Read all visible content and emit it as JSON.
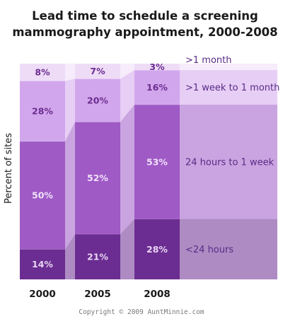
{
  "chart_data": {
    "type": "bar",
    "stacked": true,
    "title_lines": [
      "Lead time to schedule a screening",
      "mammography appointment, 2000-2008"
    ],
    "ylabel": "Percent of sites",
    "xlabel": "",
    "ylim": [
      0,
      100
    ],
    "categories": [
      "2000",
      "2005",
      "2008"
    ],
    "series": [
      {
        "name": "<24 hours",
        "values": [
          14,
          21,
          28
        ],
        "color": "#6b2d91"
      },
      {
        "name": "24 hours to 1 week",
        "values": [
          50,
          52,
          53
        ],
        "color": "#9f5ac6"
      },
      {
        "name": ">1 week to 1 month",
        "values": [
          28,
          20,
          16
        ],
        "color": "#d2a6ec"
      },
      {
        "name": ">1 month",
        "values": [
          8,
          7,
          3
        ],
        "color": "#eedcf7"
      }
    ],
    "value_labels": [
      [
        "14%",
        "21%",
        "28%"
      ],
      [
        "50%",
        "52%",
        "53%"
      ],
      [
        "28%",
        "20%",
        "16%"
      ],
      [
        "8%",
        "7%",
        "3%"
      ]
    ],
    "label_colors": [
      "#e8d4f4",
      "#f1e2f9",
      "#6b2d91",
      "#6b2d91"
    ],
    "legend_placement": "right-inline",
    "grid": false
  },
  "copyright": "Copyright © 2009 AuntMinnie.com"
}
